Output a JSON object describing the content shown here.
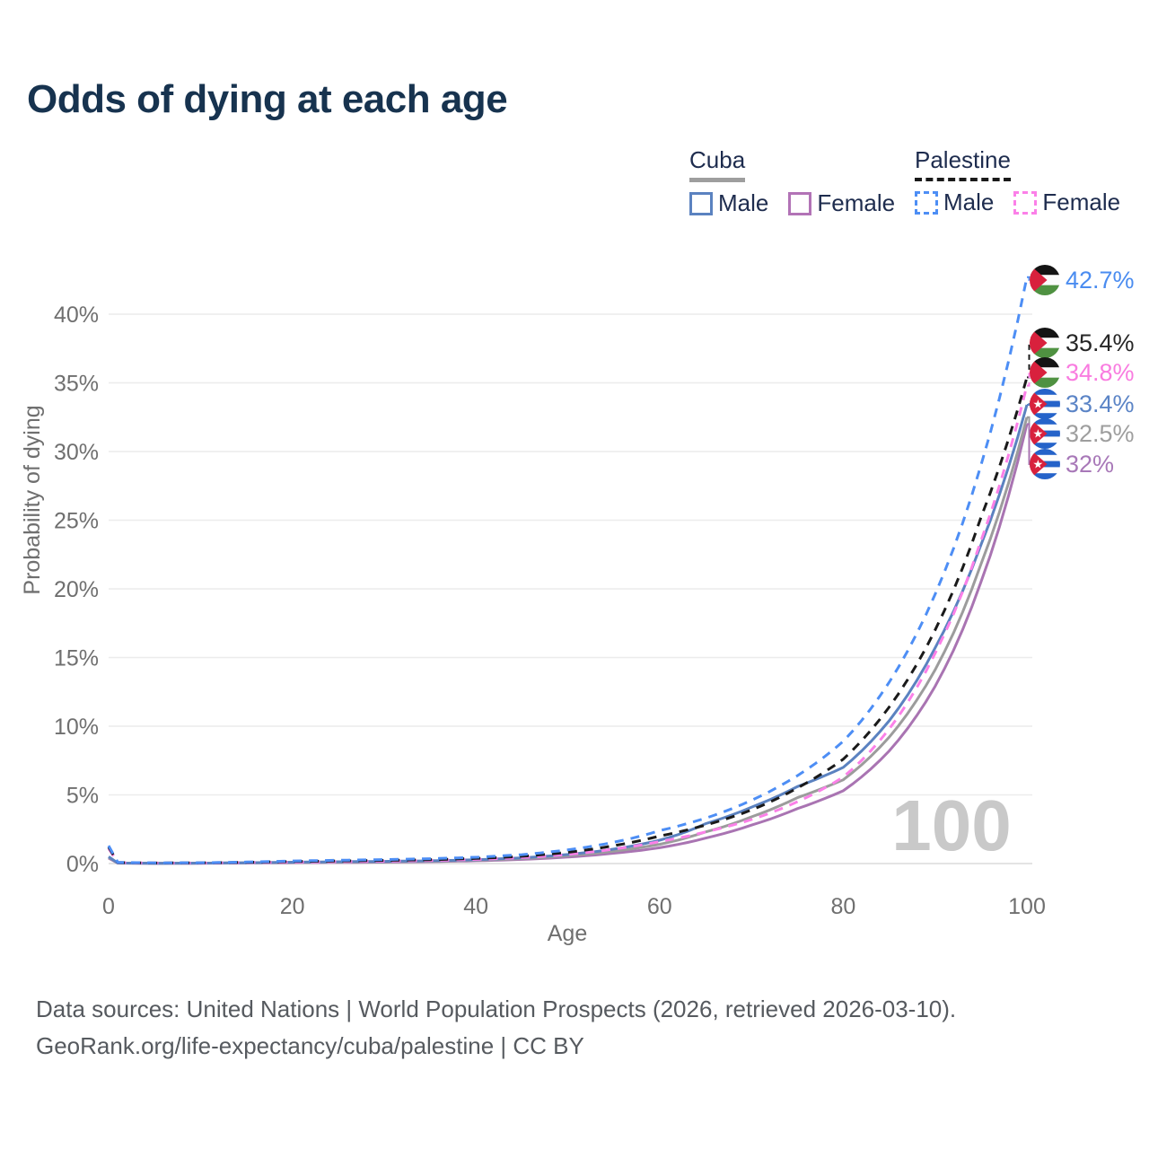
{
  "title": "Odds of dying at each age",
  "legend": {
    "groups": [
      {
        "name": "Cuba",
        "line_style": "solid",
        "underline_color": "#9e9e9e",
        "items": [
          {
            "label": "Male",
            "color": "#5b82c0",
            "dashed": false
          },
          {
            "label": "Female",
            "color": "#b273b6",
            "dashed": false
          }
        ]
      },
      {
        "name": "Palestine",
        "line_style": "dashed",
        "underline_color": "#1a1a1a",
        "items": [
          {
            "label": "Male",
            "color": "#4d8ef5",
            "dashed": true
          },
          {
            "label": "Female",
            "color": "#fb80e8",
            "dashed": true
          }
        ]
      }
    ]
  },
  "chart_data": {
    "type": "line",
    "title": "Odds of dying at each age",
    "xlabel": "Age",
    "ylabel": "Probability of dying",
    "xlim": [
      0,
      100
    ],
    "ylim": [
      0,
      43.5
    ],
    "grid": true,
    "legend_position": "top-right",
    "hover_age_indicator": "100",
    "xticks": [
      [
        0,
        "0"
      ],
      [
        20,
        "20"
      ],
      [
        40,
        "40"
      ],
      [
        60,
        "60"
      ],
      [
        80,
        "80"
      ],
      [
        100,
        "100"
      ]
    ],
    "yticks": [
      [
        0,
        "0%"
      ],
      [
        5,
        "5%"
      ],
      [
        10,
        "10%"
      ],
      [
        15,
        "15%"
      ],
      [
        20,
        "20%"
      ],
      [
        25,
        "25%"
      ],
      [
        30,
        "30%"
      ],
      [
        35,
        "35%"
      ],
      [
        40,
        "40%"
      ]
    ],
    "ages": [
      0,
      1,
      5,
      10,
      15,
      20,
      25,
      30,
      35,
      40,
      45,
      50,
      55,
      60,
      65,
      70,
      75,
      80,
      85,
      90,
      95,
      100
    ],
    "series": [
      {
        "id": "palestine-male",
        "country": "Palestine",
        "sex": "male",
        "line": "dashed",
        "color": "#4d8ef5",
        "label_color": "#4a8cf0",
        "flag": "palestine",
        "end_label": "42.7%",
        "end_value": 42.7,
        "values": [
          1.3,
          0.09,
          0.05,
          0.06,
          0.11,
          0.19,
          0.24,
          0.29,
          0.35,
          0.46,
          0.65,
          1.0,
          1.55,
          2.4,
          3.3,
          4.6,
          6.4,
          8.9,
          13.2,
          19.6,
          29.0,
          42.7
        ]
      },
      {
        "id": "palestine-both",
        "country": "Palestine",
        "sex": "both",
        "line": "dashed",
        "color": "#1a1a1a",
        "label_color": "#262626",
        "flag": "palestine",
        "end_label": "35.4%",
        "end_value": 35.4,
        "values": [
          1.2,
          0.08,
          0.04,
          0.05,
          0.09,
          0.15,
          0.19,
          0.23,
          0.28,
          0.37,
          0.53,
          0.82,
          1.3,
          2.0,
          2.8,
          3.9,
          5.5,
          7.6,
          11.4,
          17.0,
          25.2,
          35.4
        ]
      },
      {
        "id": "palestine-female",
        "country": "Palestine",
        "sex": "female",
        "line": "dashed",
        "color": "#fb80e8",
        "label_color": "#f97ce0",
        "flag": "palestine",
        "end_label": "34.8%",
        "end_value": 34.8,
        "values": [
          1.1,
          0.07,
          0.04,
          0.04,
          0.07,
          0.1,
          0.13,
          0.17,
          0.22,
          0.3,
          0.43,
          0.66,
          1.05,
          1.6,
          2.3,
          3.2,
          4.5,
          6.3,
          9.8,
          15.3,
          23.5,
          34.8
        ]
      },
      {
        "id": "cuba-male",
        "country": "Cuba",
        "sex": "male",
        "line": "solid",
        "color": "#5b82c0",
        "label_color": "#5b84c6",
        "flag": "cuba",
        "end_label": "33.4%",
        "end_value": 33.4,
        "values": [
          0.5,
          0.04,
          0.02,
          0.03,
          0.06,
          0.1,
          0.13,
          0.16,
          0.2,
          0.28,
          0.42,
          0.66,
          1.05,
          1.7,
          2.9,
          4.1,
          5.6,
          7.0,
          10.4,
          15.7,
          23.2,
          33.4
        ]
      },
      {
        "id": "cuba-both",
        "country": "Cuba",
        "sex": "both",
        "line": "solid",
        "color": "#9c9c9c",
        "label_color": "#9e9e9e",
        "flag": "cuba",
        "end_label": "32.5%",
        "end_value": 32.5,
        "values": [
          0.45,
          0.04,
          0.02,
          0.03,
          0.05,
          0.08,
          0.1,
          0.13,
          0.17,
          0.24,
          0.36,
          0.57,
          0.9,
          1.4,
          2.3,
          3.4,
          4.8,
          6.1,
          9.2,
          14.1,
          21.8,
          32.5
        ]
      },
      {
        "id": "cuba-female",
        "country": "Cuba",
        "sex": "female",
        "line": "solid",
        "color": "#a974b2",
        "label_color": "#a878b8",
        "flag": "cuba",
        "end_label": "32%",
        "end_value": 32.0,
        "values": [
          0.4,
          0.03,
          0.02,
          0.02,
          0.04,
          0.06,
          0.08,
          0.1,
          0.14,
          0.2,
          0.3,
          0.47,
          0.75,
          1.15,
          1.85,
          2.8,
          4.0,
          5.3,
          8.2,
          12.9,
          20.5,
          32.0
        ]
      }
    ]
  },
  "footer": {
    "line1": "Data sources: United Nations | World Population Prospects (2026, retrieved 2026-03-10).",
    "line2": "GeoRank.org/life-expectancy/cuba/palestine | CC BY"
  }
}
